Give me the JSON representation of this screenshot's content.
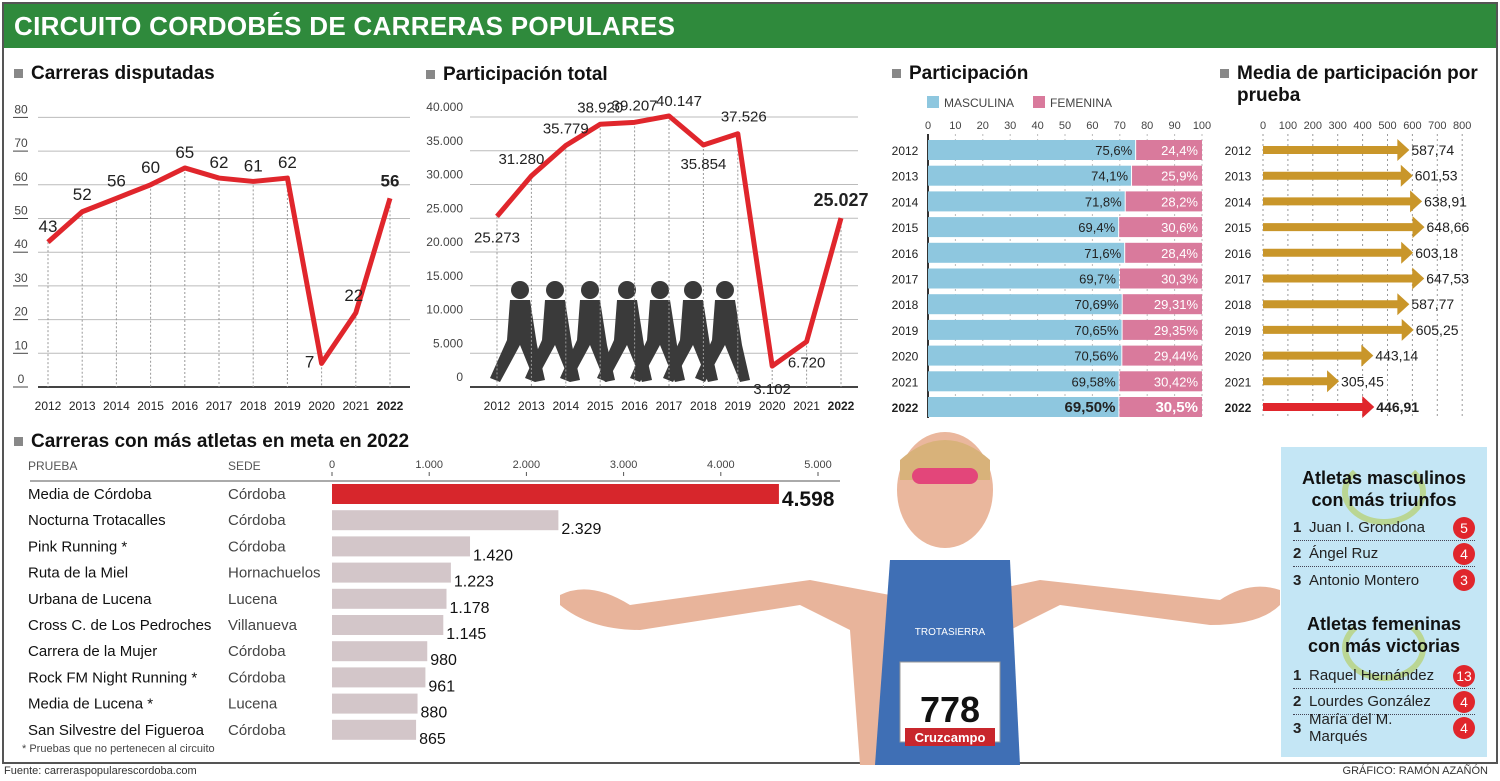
{
  "header": {
    "title": "CIRCUITO CORDOBÉS DE CARRERAS POPULARES"
  },
  "colors": {
    "green": "#2f8a3c",
    "red": "#e0262c",
    "blue": "#8ec7df",
    "pink": "#d97a9c",
    "gold": "#c9962a",
    "gray_bar": "#d3c6c9"
  },
  "chart_data": [
    {
      "id": "carreras",
      "type": "line",
      "title": "Carreras disputadas",
      "x": [
        "2012",
        "2013",
        "2014",
        "2015",
        "2016",
        "2017",
        "2018",
        "2019",
        "2020",
        "2021",
        "2022"
      ],
      "values": [
        43,
        52,
        56,
        60,
        65,
        62,
        61,
        62,
        7,
        22,
        56
      ],
      "labels": [
        "43",
        "52",
        "56",
        "60",
        "65",
        "62",
        "61",
        "62",
        "7",
        "22",
        "56"
      ],
      "yticks": [
        "0",
        "10",
        "20",
        "30",
        "40",
        "50",
        "60",
        "70",
        "80"
      ],
      "ylim": [
        0,
        80
      ]
    },
    {
      "id": "participacion_total",
      "type": "line",
      "title": "Participación total",
      "x": [
        "2012",
        "2013",
        "2014",
        "2015",
        "2016",
        "2017",
        "2018",
        "2019",
        "2020",
        "2021",
        "2022"
      ],
      "values": [
        25273,
        31280,
        35779,
        38920,
        39207,
        40147,
        35854,
        37526,
        3102,
        6720,
        25027
      ],
      "labels": [
        "25.273",
        "31.280",
        "35.779",
        "38.920",
        "39.207",
        "40.147",
        "35.854",
        "37.526",
        "3.102",
        "6.720",
        "25.027"
      ],
      "yticks": [
        "0",
        "5.000",
        "10.000",
        "15.000",
        "20.000",
        "25.000",
        "30.000",
        "35.000",
        "40.000"
      ],
      "ylim": [
        0,
        40000
      ]
    },
    {
      "id": "participacion",
      "type": "bar",
      "stacked": true,
      "title": "Participación",
      "legend": [
        "MASCULINA",
        "FEMENINA"
      ],
      "x": [
        "2012",
        "2013",
        "2014",
        "2015",
        "2016",
        "2017",
        "2018",
        "2019",
        "2020",
        "2021",
        "2022"
      ],
      "series": [
        {
          "name": "MASCULINA",
          "values": [
            75.6,
            74.1,
            71.8,
            69.4,
            71.6,
            69.7,
            70.69,
            70.65,
            70.56,
            69.58,
            69.5
          ],
          "labels": [
            "75,6%",
            "74,1%",
            "71,8%",
            "69,4%",
            "71,6%",
            "69,7%",
            "70,69%",
            "70,65%",
            "70,56%",
            "69,58%",
            "69,50%"
          ]
        },
        {
          "name": "FEMENINA",
          "values": [
            24.4,
            25.9,
            28.2,
            30.6,
            28.4,
            30.3,
            29.31,
            29.35,
            29.44,
            30.42,
            30.5
          ],
          "labels": [
            "24,4%",
            "25,9%",
            "28,2%",
            "30,6%",
            "28,4%",
            "30,3%",
            "29,31%",
            "29,35%",
            "29,44%",
            "30,42%",
            "30,5%"
          ]
        }
      ],
      "xticks": [
        "0",
        "10",
        "20",
        "30",
        "40",
        "50",
        "60",
        "70",
        "80",
        "90",
        "100"
      ],
      "xlim": [
        0,
        100
      ]
    },
    {
      "id": "media",
      "type": "bar",
      "title": "Media de participación por prueba",
      "x": [
        "2012",
        "2013",
        "2014",
        "2015",
        "2016",
        "2017",
        "2018",
        "2019",
        "2020",
        "2021",
        "2022"
      ],
      "values": [
        587.74,
        601.53,
        638.91,
        648.66,
        603.18,
        647.53,
        587.77,
        605.25,
        443.14,
        305.45,
        446.91
      ],
      "labels": [
        "587,74",
        "601,53",
        "638,91",
        "648,66",
        "603,18",
        "647,53",
        "587,77",
        "605,25",
        "443,14",
        "305,45",
        "446,91"
      ],
      "xticks": [
        "0",
        "100",
        "200",
        "300",
        "400",
        "500",
        "600",
        "700",
        "800"
      ],
      "xlim": [
        0,
        800
      ]
    },
    {
      "id": "top_carreras",
      "type": "bar",
      "title": "Carreras con más atletas en meta en 2022",
      "col_prueba": "PRUEBA",
      "col_sede": "SEDE",
      "xticks": [
        "0",
        "1.000",
        "2.000",
        "3.000",
        "4.000",
        "5.000"
      ],
      "xlim": [
        0,
        5000
      ],
      "rows": [
        {
          "prueba": "Media de Córdoba",
          "sede": "Córdoba",
          "value": 4598,
          "label": "4.598"
        },
        {
          "prueba": "Nocturna Trotacalles",
          "sede": "Córdoba",
          "value": 2329,
          "label": "2.329"
        },
        {
          "prueba": "Pink Running *",
          "sede": "Córdoba",
          "value": 1420,
          "label": "1.420"
        },
        {
          "prueba": "Ruta de la Miel",
          "sede": "Hornachuelos",
          "value": 1223,
          "label": "1.223"
        },
        {
          "prueba": "Urbana de Lucena",
          "sede": "Lucena",
          "value": 1178,
          "label": "1.178"
        },
        {
          "prueba": "Cross C. de Los Pedroches",
          "sede": "Villanueva",
          "value": 1145,
          "label": "1.145"
        },
        {
          "prueba": "Carrera de la Mujer",
          "sede": "Córdoba",
          "value": 980,
          "label": "980"
        },
        {
          "prueba": "Rock FM Night Running *",
          "sede": "Córdoba",
          "value": 961,
          "label": "961"
        },
        {
          "prueba": "Media de Lucena *",
          "sede": "Lucena",
          "value": 880,
          "label": "880"
        },
        {
          "prueba": "San Silvestre del Figueroa",
          "sede": "Córdoba",
          "value": 865,
          "label": "865"
        }
      ],
      "note": "* Pruebas que no pertenecen al circuito"
    }
  ],
  "photo": {
    "bib_number": "778",
    "sponsor": "Cruzcampo",
    "club": "TROTASIERRA"
  },
  "winners": {
    "male_title_1": "Atletas masculinos",
    "male_title_2": "con más triunfos",
    "male": [
      {
        "rank": "1",
        "name": "Juan I. Grondona",
        "wins": "5"
      },
      {
        "rank": "2",
        "name": "Ángel Ruz",
        "wins": "4"
      },
      {
        "rank": "3",
        "name": "Antonio Montero",
        "wins": "3"
      }
    ],
    "female_title_1": "Atletas femeninas",
    "female_title_2": "con más victorias",
    "female": [
      {
        "rank": "1",
        "name": "Raquel Hernández",
        "wins": "13"
      },
      {
        "rank": "2",
        "name": "Lourdes González",
        "wins": "4"
      },
      {
        "rank": "3",
        "name": "María del M. Marqués",
        "wins": "4"
      }
    ]
  },
  "footer": {
    "source": "Fuente: carreraspopularescordoba.com",
    "credit": "GRÁFICO: RAMÓN AZAÑÓN"
  }
}
